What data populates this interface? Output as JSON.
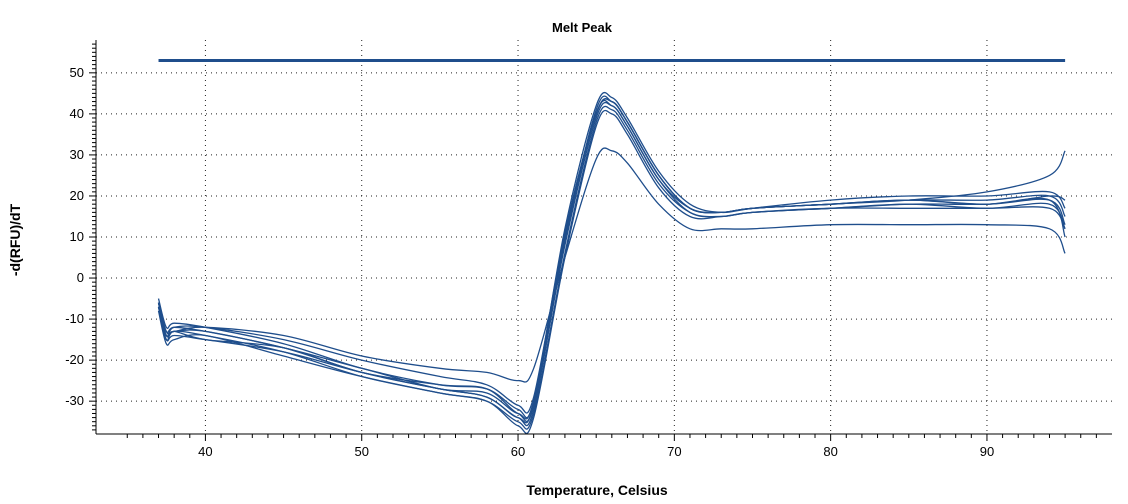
{
  "chart_data": {
    "type": "line",
    "title": "Melt Peak",
    "xlabel": "Temperature, Celsius",
    "ylabel": "-d(RFU)/dT",
    "xlim": [
      33,
      98
    ],
    "ylim": [
      -38,
      58
    ],
    "xticks": [
      40,
      50,
      60,
      70,
      80,
      90
    ],
    "yticks": [
      -30,
      -20,
      -10,
      0,
      10,
      20,
      30,
      40,
      50
    ],
    "grid": true,
    "legend": "none",
    "line_color": "#1f4e8c",
    "threshold": {
      "y": 53,
      "x": [
        37,
        95
      ]
    },
    "series": [
      {
        "x": [
          37,
          37.5,
          38,
          40,
          45,
          50,
          55,
          58,
          60,
          61,
          63,
          65,
          66,
          67,
          69,
          71,
          73,
          75,
          80,
          85,
          90,
          94,
          95
        ],
        "y": [
          -6,
          -14,
          -13,
          -13,
          -17,
          -22,
          -27,
          -28,
          -33,
          -30,
          10,
          40,
          43,
          38,
          25,
          17,
          16,
          17,
          18,
          19,
          18,
          19,
          13
        ]
      },
      {
        "x": [
          37,
          37.5,
          38,
          40,
          45,
          50,
          55,
          58,
          60,
          61,
          63,
          65,
          66,
          67,
          69,
          71,
          73,
          75,
          80,
          85,
          90,
          94,
          95
        ],
        "y": [
          -7,
          -15,
          -14,
          -15,
          -18,
          -23,
          -27,
          -29,
          -34,
          -31,
          8,
          39,
          42,
          37,
          24,
          16,
          15,
          16,
          17,
          18,
          17,
          18,
          12
        ]
      },
      {
        "x": [
          37,
          37.5,
          38,
          40,
          45,
          50,
          55,
          58,
          60,
          61,
          63,
          65,
          66,
          67,
          69,
          71,
          73,
          75,
          80,
          85,
          90,
          94,
          95
        ],
        "y": [
          -5,
          -12,
          -11,
          -12,
          -16,
          -22,
          -26,
          -27,
          -32,
          -30,
          12,
          42,
          44,
          39,
          26,
          18,
          16,
          17,
          19,
          20,
          20,
          21,
          17
        ]
      },
      {
        "x": [
          37,
          37.5,
          38,
          40,
          45,
          50,
          55,
          58,
          60,
          61,
          63,
          65,
          66,
          67,
          69,
          71,
          73,
          75,
          80,
          85,
          90,
          94,
          95
        ],
        "y": [
          -8,
          -16,
          -15,
          -14,
          -19,
          -24,
          -28,
          -30,
          -35,
          -33,
          6,
          38,
          41,
          36,
          23,
          16,
          15,
          16,
          17,
          18,
          18,
          19,
          10
        ]
      },
      {
        "x": [
          37,
          37.5,
          38,
          40,
          45,
          50,
          55,
          58,
          60,
          61,
          63,
          65,
          66,
          67,
          69,
          71,
          73,
          75,
          80,
          85,
          90,
          94,
          95
        ],
        "y": [
          -6,
          -13,
          -12,
          -13,
          -17,
          -23,
          -27,
          -29,
          -34,
          -32,
          9,
          41,
          43,
          38,
          25,
          17,
          16,
          17,
          18,
          19,
          19,
          20,
          15
        ]
      },
      {
        "x": [
          37,
          37.5,
          38,
          40,
          45,
          50,
          55,
          58,
          60,
          61,
          63,
          65,
          66,
          67,
          69,
          71,
          73,
          75,
          80,
          85,
          90,
          94,
          95
        ],
        "y": [
          -6,
          -14,
          -12,
          -12,
          -15,
          -20,
          -24,
          -26,
          -31,
          -29,
          11,
          40,
          43,
          38,
          25,
          17,
          16,
          17,
          18,
          19,
          21,
          25,
          31
        ]
      },
      {
        "x": [
          37,
          37.5,
          38,
          40,
          45,
          50,
          55,
          58,
          60,
          61,
          63,
          65,
          66,
          67,
          69,
          71,
          73,
          75,
          80,
          85,
          90,
          94,
          95
        ],
        "y": [
          -7,
          -15,
          -13,
          -14,
          -18,
          -24,
          -28,
          -30,
          -36,
          -34,
          5,
          37,
          40,
          35,
          22,
          15,
          15,
          16,
          17,
          17,
          17,
          17,
          12
        ]
      },
      {
        "x": [
          37,
          37.5,
          38,
          40,
          45,
          50,
          55,
          58,
          60,
          61,
          63,
          65,
          66,
          67,
          69,
          71,
          73,
          75,
          80,
          85,
          90,
          94,
          95
        ],
        "y": [
          -6,
          -13,
          -13,
          -12,
          -14,
          -19,
          -22,
          -23,
          -25,
          -22,
          5,
          29,
          31,
          28,
          18,
          12,
          12,
          12,
          13,
          13,
          13,
          12,
          6
        ]
      },
      {
        "x": [
          37,
          37.5,
          38,
          40,
          45,
          50,
          55,
          58,
          60,
          61,
          63,
          65,
          66,
          67,
          69,
          71,
          73,
          75,
          80,
          85,
          90,
          94,
          95
        ],
        "y": [
          -7,
          -14,
          -13,
          -15,
          -17,
          -23,
          -26,
          -27,
          -33,
          -31,
          9,
          40,
          42,
          37,
          24,
          17,
          16,
          17,
          18,
          19,
          18,
          20,
          19
        ]
      }
    ]
  }
}
